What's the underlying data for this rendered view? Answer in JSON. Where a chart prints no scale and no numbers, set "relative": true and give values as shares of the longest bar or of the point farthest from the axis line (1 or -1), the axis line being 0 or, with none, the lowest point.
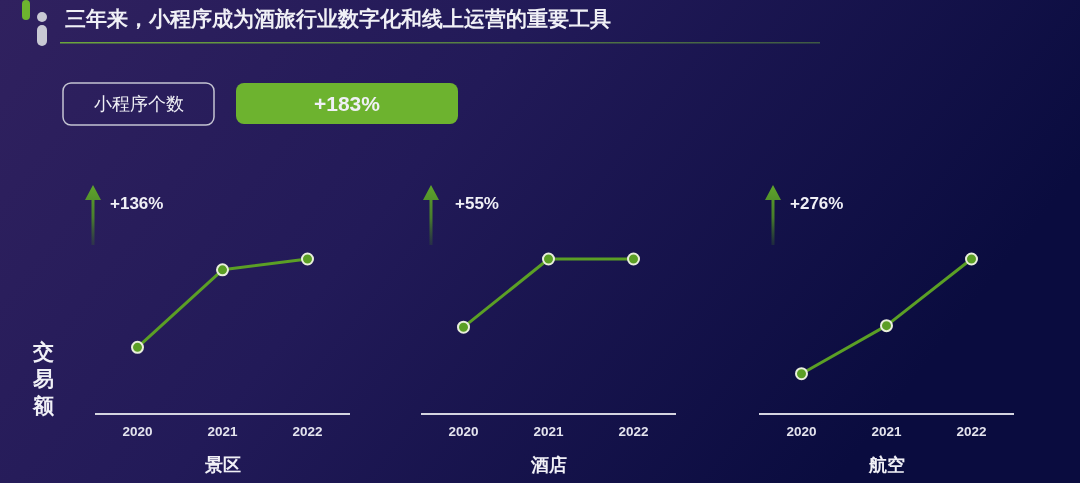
{
  "chart_data": [
    {
      "type": "other",
      "title": "三年来，小程序成为酒旅行业数字化和线上运营的重要工具",
      "annotations": [
        "小程序个数",
        "+183%"
      ]
    },
    {
      "type": "line",
      "xlabel": "景区",
      "ylabel": "交易额",
      "categories": [
        "2020",
        "2021",
        "2022"
      ],
      "values": [
        0.43,
        0.93,
        1
      ],
      "color": "#5b9f25",
      "relative": true,
      "marker": "circle",
      "annotations": [
        "+136%"
      ]
    },
    {
      "type": "line",
      "xlabel": "酒店",
      "categories": [
        "2020",
        "2021",
        "2022"
      ],
      "values": [
        0.56,
        1,
        1
      ],
      "color": "#5b9f25",
      "relative": true,
      "marker": "circle",
      "annotations": [
        "+55%"
      ]
    },
    {
      "type": "line",
      "xlabel": "航空",
      "categories": [
        "2020",
        "2021",
        "2022"
      ],
      "values": [
        0.26,
        0.57,
        1
      ],
      "color": "#5b9f25",
      "relative": true,
      "marker": "circle",
      "annotations": [
        "+276%"
      ]
    }
  ]
}
